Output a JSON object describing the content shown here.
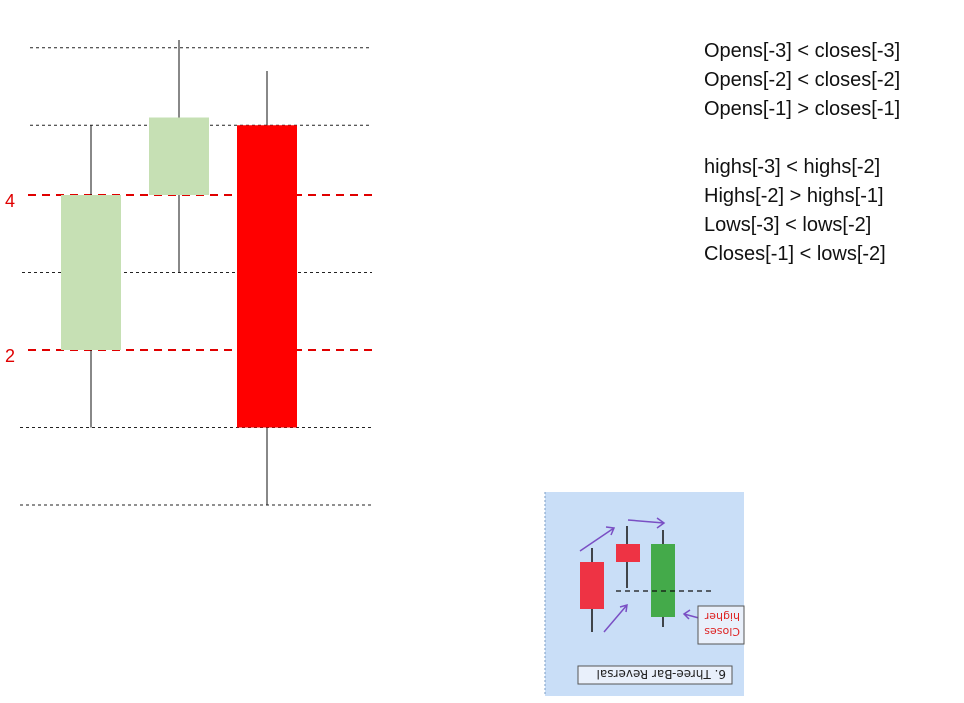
{
  "axis": {
    "labels": [
      {
        "value": 4,
        "text": "4"
      },
      {
        "value": 2,
        "text": "2"
      }
    ],
    "colors": {
      "reference_line": "#e00000",
      "grid": "#222222"
    }
  },
  "candles": [
    {
      "index": -3,
      "open": 2.0,
      "close": 4.0,
      "high": 4.9,
      "low": 1.0,
      "color": "#c6e0b4"
    },
    {
      "index": -2,
      "open": 4.0,
      "close": 5.0,
      "high": 6.0,
      "low": 3.0,
      "color": "#c6e0b4"
    },
    {
      "index": -1,
      "open": 4.9,
      "close": 1.0,
      "high": 5.6,
      "low": 0.0,
      "color": "#ff0000"
    }
  ],
  "rules": {
    "group1": [
      "Opens[-3] < closes[-3]",
      "Opens[-2] < closes[-2]",
      "Opens[-1] > closes[-1]"
    ],
    "group2": [
      "highs[-3] < highs[-2]",
      "Highs[-2] > highs[-1]",
      "Lows[-3] < lows[-2]",
      "Closes[-1] < lows[-2]"
    ]
  },
  "thumbnail": {
    "caption": "6. Three-Bar Reversal",
    "note_line1": "Closes",
    "note_line2": "higher",
    "colors": {
      "background": "#c9def7",
      "red": "#ee3344",
      "green": "#44aa4a",
      "arrow": "#7a4fc4"
    }
  }
}
